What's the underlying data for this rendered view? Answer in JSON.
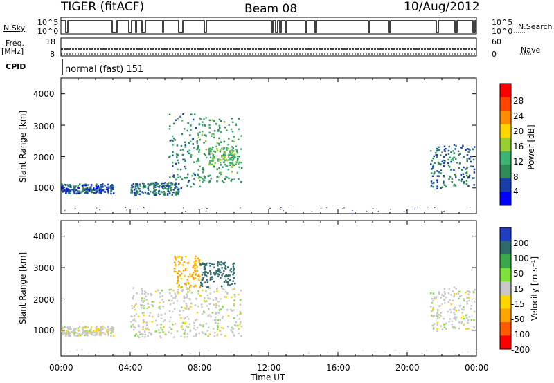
{
  "header": {
    "radar": "TIGER (fitACF)",
    "beam": "Beam 08",
    "date": "10/Aug/2012"
  },
  "top_panels": {
    "nsky_label": "N.Sky",
    "nsky_ticks": [
      "10^5",
      "10^0"
    ],
    "nsearch_label": "N.Search",
    "nsearch_ticks": [
      "10^5",
      "10^0"
    ],
    "freq_label": "Freq.",
    "freq_unit": "[MHz]",
    "freq_ticks": [
      "18",
      "8"
    ],
    "nave_label": "Nave",
    "nave_ticks": [
      "60",
      "0"
    ],
    "cpid_label": "CPID",
    "cpid_value": "normal (fast) 151"
  },
  "axes": {
    "ylabel": "Slant Range [km]",
    "xlabel": "Time UT",
    "yticks": [
      "4000",
      "3000",
      "2000",
      "1000"
    ],
    "xticks": [
      "00:00",
      "04:00",
      "08:00",
      "12:00",
      "16:00",
      "20:00",
      "00:00"
    ]
  },
  "colorbars": {
    "power": {
      "label": "Power [dB]",
      "ticks": [
        "28",
        "24",
        "20",
        "16",
        "12",
        "8",
        "4"
      ],
      "colors": [
        "#ff0000",
        "#ff4500",
        "#ff8c00",
        "#ffd700",
        "#9acd32",
        "#3cb371",
        "#2e8b57",
        "#1a3ea8",
        "#0000ff"
      ]
    },
    "velocity": {
      "label": "Velocity [m s⁻¹]",
      "ticks": [
        "200",
        "100",
        "50",
        "15",
        "-15",
        "-50",
        "-100",
        "-200"
      ],
      "colors": [
        "#1f3fbf",
        "#2f6b6b",
        "#3aa84a",
        "#7fe03a",
        "#c8c8c8",
        "#ffd700",
        "#ffa500",
        "#ff5a00",
        "#ff0000"
      ]
    }
  },
  "chart_data": [
    {
      "type": "heatmap",
      "title": "Power [dB]",
      "xlabel": "Time UT",
      "ylabel": "Slant Range [km]",
      "xlim": [
        0,
        24
      ],
      "ylim": [
        180,
        4500
      ],
      "clim": [
        0,
        30
      ],
      "echo_regions": [
        {
          "t_start": 0.0,
          "t_end": 3.0,
          "range_km": [
            850,
            1150
          ],
          "value": 5
        },
        {
          "t_start": 4.0,
          "t_end": 6.8,
          "range_km": [
            800,
            1200
          ],
          "value": 6
        },
        {
          "t_start": 6.2,
          "t_end": 8.0,
          "range_km": [
            1000,
            3400
          ],
          "value": 8
        },
        {
          "t_start": 7.8,
          "t_end": 10.4,
          "range_km": [
            1200,
            3300
          ],
          "value": 10
        },
        {
          "t_start": 8.5,
          "t_end": 10.2,
          "range_km": [
            1700,
            2300
          ],
          "value": 12
        },
        {
          "t_start": 21.3,
          "t_end": 23.9,
          "range_km": [
            1000,
            2400
          ],
          "value": 6
        }
      ]
    },
    {
      "type": "heatmap",
      "title": "Velocity [m s⁻¹]",
      "xlabel": "Time UT",
      "ylabel": "Slant Range [km]",
      "xlim": [
        0,
        24
      ],
      "ylim": [
        180,
        4500
      ],
      "clim": [
        -200,
        200
      ],
      "echo_regions": [
        {
          "t_start": 0.0,
          "t_end": 3.0,
          "range_km": [
            850,
            1150
          ],
          "value": 0
        },
        {
          "t_start": 4.0,
          "t_end": 10.4,
          "range_km": [
            800,
            2400
          ],
          "value": 0
        },
        {
          "t_start": 6.5,
          "t_end": 8.0,
          "range_km": [
            2400,
            3400
          ],
          "value": -60
        },
        {
          "t_start": 8.0,
          "t_end": 10.0,
          "range_km": [
            2400,
            3200
          ],
          "value": 120
        },
        {
          "t_start": 21.3,
          "t_end": 23.9,
          "range_km": [
            1000,
            2400
          ],
          "value": 0
        }
      ]
    }
  ]
}
